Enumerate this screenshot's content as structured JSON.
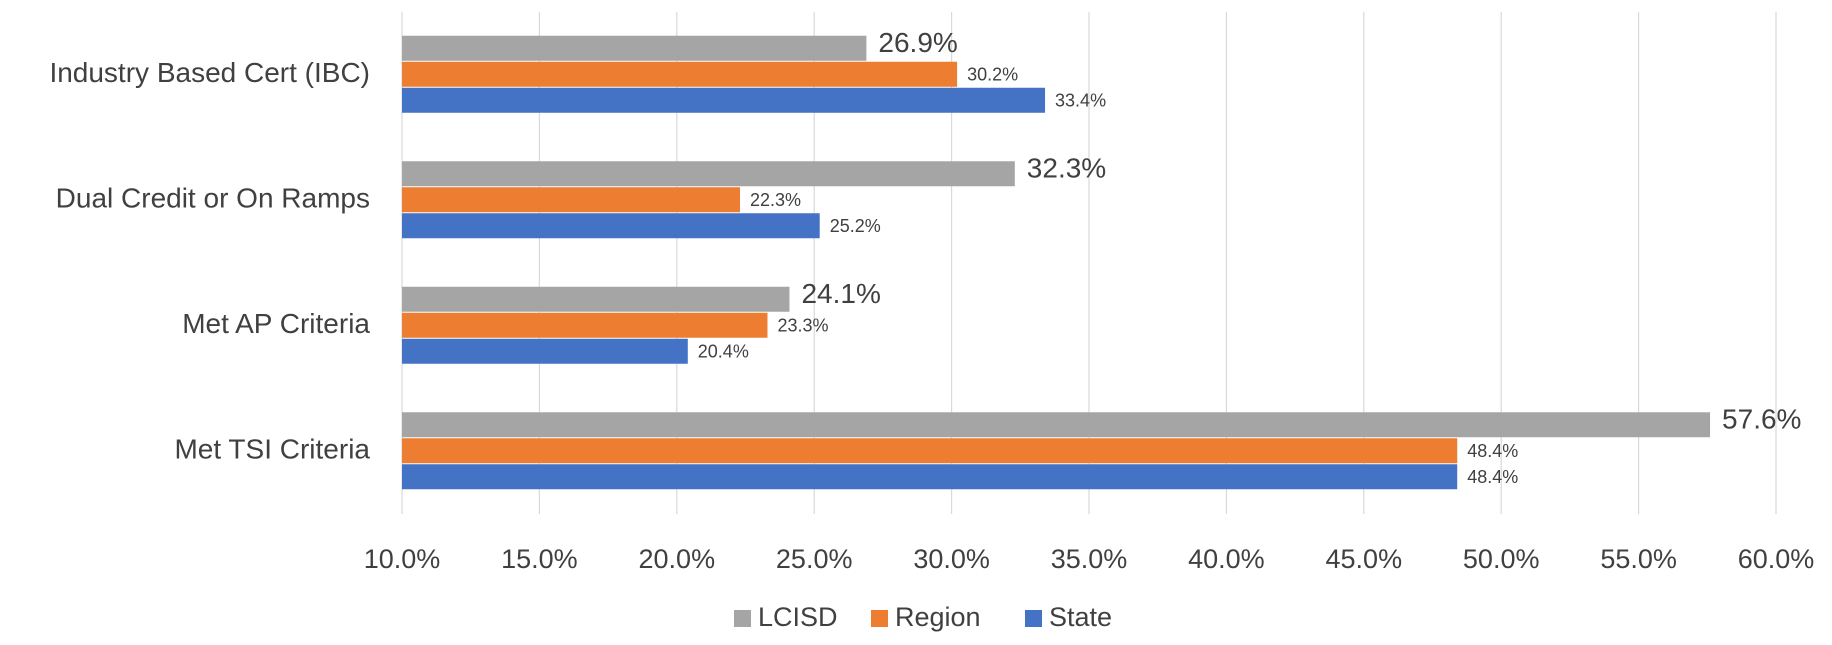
{
  "chart_data": {
    "type": "hbar",
    "categories": [
      "Industry Based Cert (IBC)",
      "Dual Credit or On Ramps",
      "Met AP Criteria",
      "Met TSI Criteria"
    ],
    "series": [
      {
        "name": "LCISD",
        "color": "#a5a5a5",
        "values": [
          26.9,
          32.3,
          24.1,
          57.6
        ],
        "value_labels": [
          "26.9%",
          "32.3%",
          "24.1%",
          "57.6%"
        ]
      },
      {
        "name": "Region",
        "color": "#ed7d31",
        "values": [
          30.2,
          22.3,
          23.3,
          48.4
        ],
        "value_labels": [
          "30.2%",
          "22.3%",
          "23.3%",
          "48.4%"
        ]
      },
      {
        "name": "State",
        "color": "#4472c4",
        "values": [
          33.4,
          25.2,
          20.4,
          48.4
        ],
        "value_labels": [
          "33.4%",
          "25.2%",
          "20.4%",
          "48.4%"
        ]
      }
    ],
    "xlim": [
      10,
      60
    ],
    "xticks": [
      {
        "value": 10,
        "label": "10.0%"
      },
      {
        "value": 15,
        "label": "15.0%"
      },
      {
        "value": 20,
        "label": "20.0%"
      },
      {
        "value": 25,
        "label": "25.0%"
      },
      {
        "value": 30,
        "label": "30.0%"
      },
      {
        "value": 35,
        "label": "35.0%"
      },
      {
        "value": 40,
        "label": "40.0%"
      },
      {
        "value": 45,
        "label": "45.0%"
      },
      {
        "value": 50,
        "label": "50.0%"
      },
      {
        "value": 55,
        "label": "55.0%"
      },
      {
        "value": 60,
        "label": "60.0%"
      }
    ],
    "grid": true,
    "legend": "bottom"
  }
}
